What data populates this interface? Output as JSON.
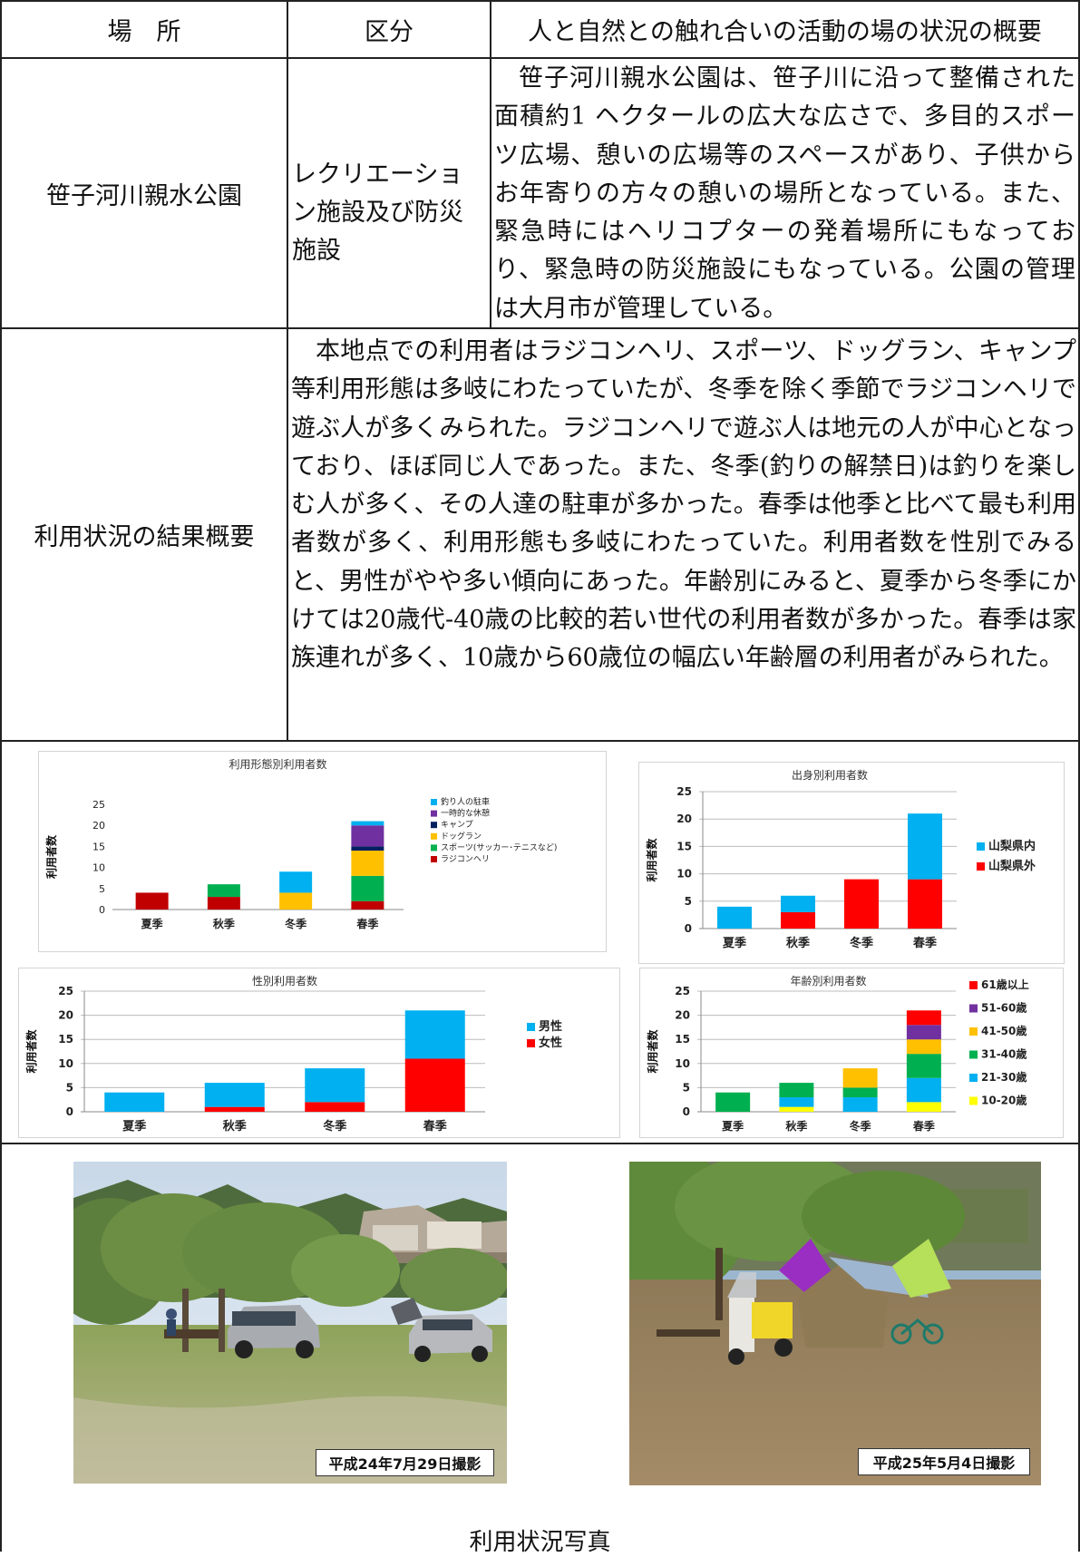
{
  "table": {
    "headers": {
      "place": "場　所",
      "category": "区分",
      "overview": "人と自然との触れ合いの活動の場の状況の概要"
    },
    "place_name": "笹子河川親水公園",
    "category_text": "レクリエーション施設及び防災施設",
    "overview_text": "笹子河川親水公園は、笹子川に沿って整備された面積約1 ヘクタールの広大な広さで、多目的スポーツ広場、憩いの広場等のスペースがあり、子供からお年寄りの方々の憩いの場所となっている。また、緊急時にはヘリコプターの発着場所にもなっており、緊急時の防災施設にもなっている。公園の管理は大月市が管理している。",
    "usage_label": "利用状況の結果概要",
    "usage_text": "本地点での利用者はラジコンヘリ、スポーツ、ドッグラン、キャンプ等利用形態は多岐にわたっていたが、冬季を除く季節でラジコンヘリで遊ぶ人が多くみられた。ラジコンヘリで遊ぶ人は地元の人が中心となっており、ほぼ同じ人であった。また、冬季(釣りの解禁日)は釣りを楽しむ人が多く、その人達の駐車が多かった。春季は他季と比べて最も利用者数が多く、利用形態も多岐にわたっていた。利用者数を性別でみると、男性がやや多い傾向にあった。年齢別にみると、夏季から冬季にかけては20歳代-40歳の比較的若い世代の利用者数が多かった。春季は家族連れが多く、10歳から60歳位の幅広い年齢層の利用者がみられた。"
  },
  "chart_data": [
    {
      "id": "usage-type",
      "type": "bar",
      "stacked": true,
      "title": "利用形態別利用者数",
      "ylabel": "利用者数",
      "categories": [
        "夏季",
        "秋季",
        "冬季",
        "春季"
      ],
      "ylim": [
        0,
        25
      ],
      "yticks": [
        0,
        5,
        10,
        15,
        20,
        25
      ],
      "grid": false,
      "legend": "right",
      "series": [
        {
          "name": "ラジコンヘリ",
          "color": "#c00000",
          "values": [
            4,
            3,
            0,
            2
          ]
        },
        {
          "name": "スポーツ(サッカー･テニスなど)",
          "color": "#00b050",
          "values": [
            0,
            3,
            0,
            6
          ]
        },
        {
          "name": "ドッグラン",
          "color": "#ffc000",
          "values": [
            0,
            0,
            4,
            6
          ]
        },
        {
          "name": "キャンプ",
          "color": "#002060",
          "values": [
            0,
            0,
            0,
            1
          ]
        },
        {
          "name": "一時的な休憩",
          "color": "#7030a0",
          "values": [
            0,
            0,
            0,
            5
          ]
        },
        {
          "name": "釣り人の駐車",
          "color": "#00b0f0",
          "values": [
            0,
            0,
            5,
            1
          ]
        }
      ]
    },
    {
      "id": "origin",
      "type": "bar",
      "stacked": true,
      "title": "出身別利用者数",
      "ylabel": "利用者数",
      "categories": [
        "夏季",
        "秋季",
        "冬季",
        "春季"
      ],
      "ylim": [
        0,
        25
      ],
      "yticks": [
        0,
        5,
        10,
        15,
        20,
        25
      ],
      "grid": true,
      "legend": "right",
      "series": [
        {
          "name": "山梨県外",
          "color": "#ff0000",
          "values": [
            0,
            3,
            9,
            9
          ]
        },
        {
          "name": "山梨県内",
          "color": "#00b0f0",
          "values": [
            4,
            3,
            0,
            12
          ]
        }
      ]
    },
    {
      "id": "gender",
      "type": "bar",
      "stacked": true,
      "title": "性別利用者数",
      "ylabel": "利用者数",
      "categories": [
        "夏季",
        "秋季",
        "冬季",
        "春季"
      ],
      "ylim": [
        0,
        25
      ],
      "yticks": [
        0,
        5,
        10,
        15,
        20,
        25
      ],
      "grid": true,
      "legend": "right",
      "series": [
        {
          "name": "女性",
          "color": "#ff0000",
          "values": [
            0,
            1,
            2,
            11
          ]
        },
        {
          "name": "男性",
          "color": "#00b0f0",
          "values": [
            4,
            5,
            7,
            10
          ]
        }
      ]
    },
    {
      "id": "age",
      "type": "bar",
      "stacked": true,
      "title": "年齢別利用者数",
      "ylabel": "利用者数",
      "categories": [
        "夏季",
        "秋季",
        "冬季",
        "春季"
      ],
      "ylim": [
        0,
        25
      ],
      "yticks": [
        0,
        5,
        10,
        15,
        20,
        25
      ],
      "grid": true,
      "legend": "right",
      "series": [
        {
          "name": "10-20歳",
          "color": "#ffff00",
          "values": [
            0,
            1,
            0,
            2
          ]
        },
        {
          "name": "21-30歳",
          "color": "#00b0f0",
          "values": [
            0,
            2,
            3,
            5
          ]
        },
        {
          "name": "31-40歳",
          "color": "#00b050",
          "values": [
            4,
            3,
            2,
            5
          ]
        },
        {
          "name": "41-50歳",
          "color": "#ffc000",
          "values": [
            0,
            0,
            4,
            3
          ]
        },
        {
          "name": "51-60歳",
          "color": "#7030a0",
          "values": [
            0,
            0,
            0,
            3
          ]
        },
        {
          "name": "61歳以上",
          "color": "#ff0000",
          "values": [
            0,
            0,
            0,
            3
          ]
        }
      ]
    }
  ],
  "photos": {
    "photo1_caption": "平成24年7月29日撮影",
    "photo2_caption": "平成25年5月4日撮影",
    "section_caption": "利用状況写真"
  }
}
